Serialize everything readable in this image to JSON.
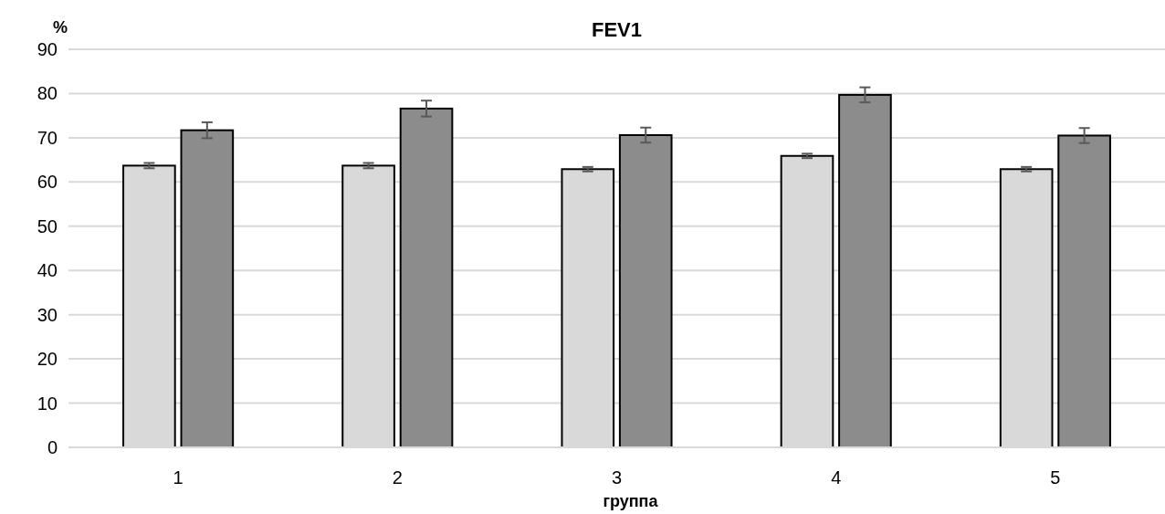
{
  "chart_data": {
    "type": "bar",
    "title": "FEV1",
    "xlabel": "группа",
    "ylabel": "%",
    "categories": [
      "1",
      "2",
      "3",
      "4",
      "5"
    ],
    "series": [
      {
        "color": "#d9d9d9",
        "values": [
          63.7,
          63.7,
          62.9,
          65.9,
          62.9
        ],
        "errors": [
          0.6,
          0.6,
          0.5,
          0.5,
          0.5
        ]
      },
      {
        "color": "#8c8c8c",
        "values": [
          71.7,
          76.6,
          70.6,
          79.7,
          70.5
        ],
        "errors": [
          1.8,
          1.8,
          1.7,
          1.7,
          1.7
        ]
      }
    ],
    "ylim": [
      0,
      90
    ],
    "yticks": [
      0,
      10,
      20,
      30,
      40,
      50,
      60,
      70,
      80,
      90
    ],
    "grid": "y"
  }
}
